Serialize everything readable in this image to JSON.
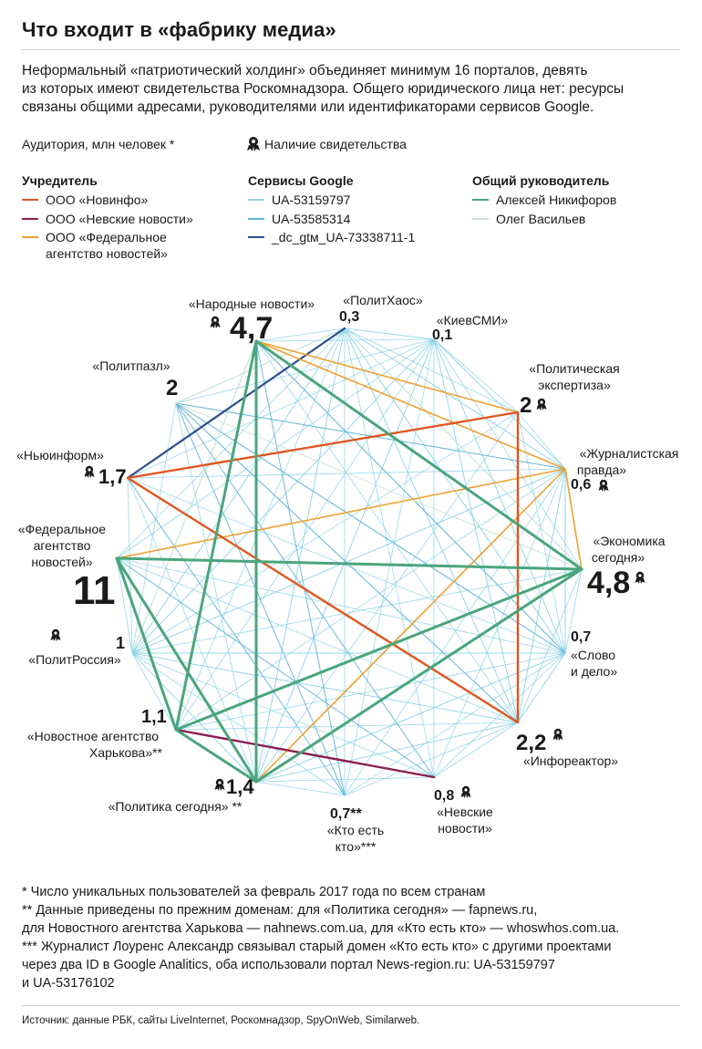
{
  "title": "Что входит в «фабрику медиа»",
  "intro": [
    "Неформальный «патриотический холдинг» объединяет минимум 16 порталов, девять",
    "из которых имеют свидетельства Роскомнадзора. Общего юридического лица нет: ресурсы",
    "связаны общими адресами, руководителями или идентификаторами сервисов Google."
  ],
  "notes": {
    "audience": "Аудитория, млн человек *",
    "license": "Наличие свидетельства"
  },
  "legend": {
    "founder": {
      "title": "Учредитель",
      "items": [
        {
          "label": "ООО «Новинфо»",
          "color": "#e0561f"
        },
        {
          "label": "ООО «Невские новости»",
          "color": "#8c1d4f"
        },
        {
          "label": "ООО «Федеральное",
          "label2": "агентство новостей»",
          "color": "#f0a030"
        }
      ]
    },
    "google": {
      "title": "Сервисы Google",
      "items": [
        {
          "label": "UA-53159797",
          "color": "#8fd3e8"
        },
        {
          "label": "UA-53585314",
          "color": "#5fb4d6"
        },
        {
          "label": "_dc_gtм_UA-73338711-1",
          "color": "#2c4f8c"
        }
      ]
    },
    "manager": {
      "title": "Общий руководитель",
      "items": [
        {
          "label": "Алексей Никифоров",
          "color": "#4aa57c"
        },
        {
          "label": "Олег Васильев",
          "color": "#c6e2cf"
        }
      ]
    }
  },
  "portals": {
    "narodnye": {
      "name": [
        "«Народные новости»"
      ],
      "audience": "4,7",
      "license": true
    },
    "polithaos": {
      "name": [
        "«ПолитХаос»"
      ],
      "audience": "0,3",
      "license": false
    },
    "kievsmi": {
      "name": [
        "«КиевСМИ»"
      ],
      "audience": "0,1",
      "license": false
    },
    "polexpert": {
      "name": [
        "«Политическая",
        "экспертиза»"
      ],
      "audience": "2",
      "license": true
    },
    "zhurpravda": {
      "name": [
        "«Журналистская",
        "правда»"
      ],
      "audience": "0,6",
      "license": true
    },
    "ekonomika": {
      "name": [
        "«Экономика",
        "сегодня»"
      ],
      "audience": "4,8",
      "license": true
    },
    "slovodelo": {
      "name": [
        "«Слово",
        "и дело»"
      ],
      "audience": "0,7",
      "license": false
    },
    "inforeaktor": {
      "name": [
        "«Инфореактор»"
      ],
      "audience": "2,2",
      "license": true
    },
    "nevskie": {
      "name": [
        "«Невские",
        "новости»"
      ],
      "audience": "0,8",
      "license": true
    },
    "kto": {
      "name": [
        "«Кто есть",
        "кто»***"
      ],
      "audience": "0,7**",
      "license": false
    },
    "politika": {
      "name": [
        "«Политика сегодня» **"
      ],
      "audience": "1,4",
      "license": true
    },
    "harkov": {
      "name": [
        "«Новостное агентство",
        "Харькова»**"
      ],
      "audience": "1,1",
      "license": false
    },
    "politrossia": {
      "name": [
        "«ПолитРоссия»"
      ],
      "audience": "1",
      "license": true
    },
    "fan": {
      "name": [
        "«Федеральное",
        "агентство",
        "новостей»"
      ],
      "audience": "11",
      "license": false
    },
    "newinform": {
      "name": [
        "«Ньюинформ»"
      ],
      "audience": "1,7",
      "license": true
    },
    "politpazl": {
      "name": [
        "«Политпазл»"
      ],
      "audience": "2",
      "license": false
    }
  },
  "footnotes": [
    "* Число уникальных пользователей за февраль 2017 года по всем странам",
    "** Данные приведены по прежним доменам: для «Политика сегодня» — fapnews.ru,",
    "для Новостного агентства Харькова — nahnews.com.ua, для «Кто есть кто» — whoswhos.com.ua.",
    "*** Журналист Лоуренс Александр связывал старый домен «Кто есть кто» с другими проектами",
    "через два ID в Google Analitics, оба использовали портал News-region.ru: UA-53159797",
    "и UA-53176102"
  ],
  "source": "Источник: данные РБК, сайты LiveInternet, Роскомнадзор, SpyOnWeb, Similarweb."
}
